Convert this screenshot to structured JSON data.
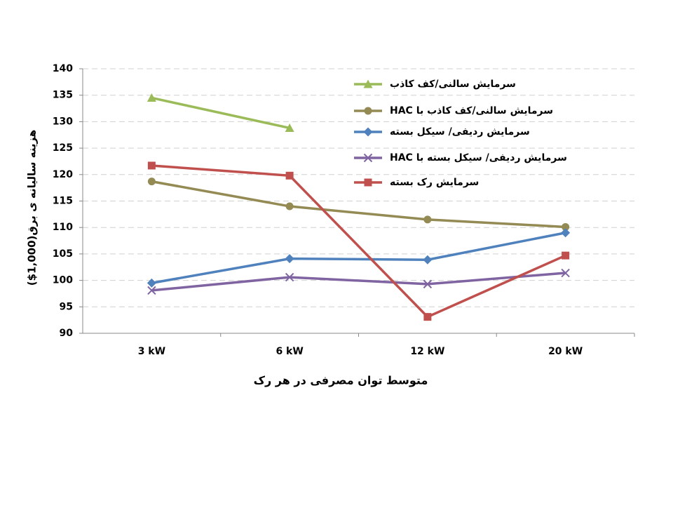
{
  "chart_data": {
    "type": "line",
    "x_label": "متوسط توان مصرفی در هر رک",
    "y_label": "هزینه سالیانه ی برق(1,000$)",
    "categories": [
      "3 kW",
      "6 kW",
      "12 kW",
      "20 kW"
    ],
    "series": [
      {
        "name": "سرمایش سالنی/کف کاذب",
        "color": "#9bbb59",
        "marker": "triangle",
        "values": [
          134.5,
          128.8,
          null,
          null
        ]
      },
      {
        "name": "سرمایش سالنی/کف کاذب با HAC",
        "color": "#948a54",
        "marker": "circle",
        "values": [
          118.7,
          114,
          111.5,
          110.1
        ]
      },
      {
        "name": "سرمایش ردیفی/ سیکل بسته",
        "color": "#4f81bd",
        "marker": "diamond",
        "values": [
          99.5,
          104.1,
          103.9,
          109
        ]
      },
      {
        "name": "سرمایش ردیفی/ سیکل بسته با HAC",
        "color": "#8064a2",
        "marker": "x",
        "values": [
          98.1,
          100.6,
          99.3,
          101.4
        ]
      },
      {
        "name": "سرمایش رک بسته",
        "color": "#c0504d",
        "marker": "square",
        "values": [
          121.7,
          119.8,
          93.1,
          104.7
        ]
      }
    ],
    "ylim": [
      90,
      140
    ],
    "yticks": [
      90,
      95,
      100,
      105,
      110,
      115,
      120,
      125,
      130,
      135,
      140
    ],
    "grid": true
  }
}
